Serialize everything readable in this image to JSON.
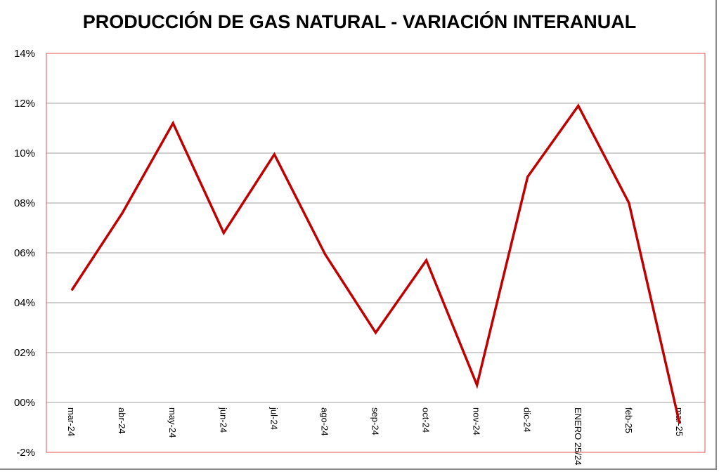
{
  "chart_data": {
    "type": "line",
    "title": "PRODUCCIÓN DE GAS NATURAL - VARIACIÓN INTERANUAL",
    "xlabel": "",
    "ylabel": "",
    "categories": [
      "mar-24",
      "abr-24",
      "may-24",
      "jun-24",
      "jul-24",
      "ago-24",
      "sep-24",
      "oct-24",
      "nov-24",
      "dic-24",
      "ENERO 25/24",
      "feb-25",
      "mar-25"
    ],
    "series": [
      {
        "name": "Variación interanual",
        "color": "#c00000",
        "values": [
          4.5,
          7.6,
          11.2,
          6.8,
          9.95,
          5.95,
          2.8,
          5.7,
          0.7,
          9.05,
          11.9,
          8.0,
          -0.85
        ]
      }
    ],
    "ylim": [
      -2,
      14
    ],
    "yticks": [
      "-2%",
      "00%",
      "02%",
      "04%",
      "06%",
      "08%",
      "10%",
      "12%",
      "14%"
    ],
    "ytick_values": [
      -2,
      0,
      2,
      4,
      6,
      8,
      10,
      12,
      14
    ],
    "grid": true,
    "legend": "none",
    "plot_border_color": "#e05050",
    "grid_color": "#a0a0a0"
  }
}
